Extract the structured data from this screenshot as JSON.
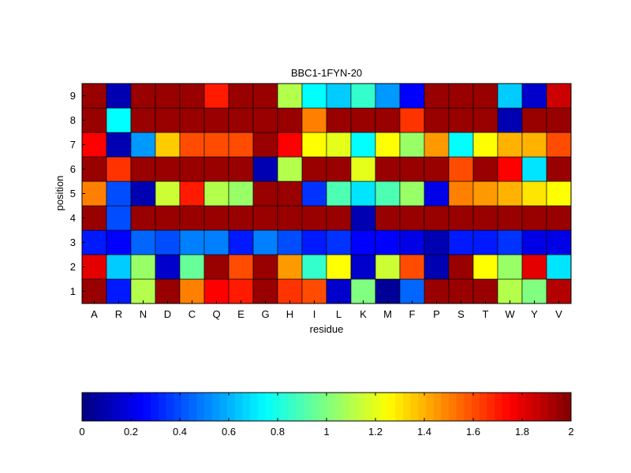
{
  "chart_data": {
    "type": "heatmap",
    "title": "BBC1-1FYN-20",
    "xlabel": "residue",
    "ylabel": "position",
    "x_categories": [
      "A",
      "R",
      "N",
      "D",
      "C",
      "Q",
      "E",
      "G",
      "H",
      "I",
      "L",
      "K",
      "M",
      "F",
      "P",
      "S",
      "T",
      "W",
      "Y",
      "V"
    ],
    "y_categories": [
      "1",
      "2",
      "3",
      "4",
      "5",
      "6",
      "7",
      "8",
      "9"
    ],
    "colormap": "jet",
    "zlim": [
      0,
      2
    ],
    "values": [
      [
        1.95,
        0.3,
        1.1,
        1.95,
        1.5,
        1.75,
        1.7,
        1.95,
        1.65,
        1.6,
        0.15,
        1.0,
        0.05,
        0.45,
        1.95,
        1.95,
        1.95,
        1.1,
        1.0,
        1.9
      ],
      [
        1.8,
        0.65,
        1.05,
        0.15,
        0.95,
        1.95,
        1.6,
        1.95,
        1.45,
        0.85,
        1.25,
        0.15,
        1.15,
        1.6,
        0.1,
        1.95,
        1.25,
        1.05,
        1.8,
        0.7
      ],
      [
        0.3,
        0.25,
        0.45,
        0.4,
        0.5,
        0.5,
        0.3,
        0.5,
        0.4,
        0.3,
        0.35,
        0.25,
        0.25,
        0.2,
        0.1,
        0.3,
        0.3,
        0.35,
        0.2,
        0.2
      ],
      [
        1.95,
        0.4,
        1.95,
        1.95,
        1.95,
        1.95,
        1.95,
        1.95,
        1.95,
        1.95,
        1.95,
        0.1,
        1.95,
        1.95,
        1.95,
        1.95,
        1.95,
        1.95,
        1.95,
        1.95
      ],
      [
        1.5,
        0.4,
        0.1,
        1.15,
        1.7,
        1.1,
        1.05,
        1.95,
        1.95,
        0.35,
        0.9,
        0.7,
        0.9,
        1.05,
        0.2,
        1.5,
        1.45,
        1.4,
        1.3,
        1.25
      ],
      [
        1.95,
        1.65,
        1.95,
        1.95,
        1.95,
        1.95,
        1.95,
        0.1,
        1.1,
        1.95,
        1.95,
        1.2,
        1.95,
        1.95,
        1.95,
        1.6,
        1.95,
        1.75,
        0.7,
        1.95
      ],
      [
        1.75,
        0.1,
        0.55,
        1.35,
        1.6,
        1.6,
        1.6,
        1.95,
        1.75,
        1.25,
        1.2,
        0.75,
        1.25,
        1.05,
        1.45,
        0.75,
        1.25,
        1.4,
        1.4,
        1.6
      ],
      [
        1.95,
        0.75,
        1.95,
        1.95,
        1.95,
        1.95,
        1.95,
        1.95,
        1.95,
        1.5,
        1.95,
        1.95,
        1.95,
        1.65,
        1.95,
        1.95,
        1.95,
        0.1,
        1.95,
        1.95
      ],
      [
        1.95,
        0.1,
        1.95,
        1.95,
        1.95,
        1.7,
        1.95,
        1.95,
        1.1,
        0.75,
        0.65,
        0.85,
        0.55,
        0.25,
        1.95,
        1.95,
        1.95,
        0.65,
        0.15,
        1.85
      ]
    ],
    "colorbar": {
      "ticks": [
        "0",
        "0.2",
        "0.4",
        "0.6",
        "0.8",
        "1",
        "1.2",
        "1.4",
        "1.6",
        "1.8",
        "2"
      ],
      "levels": 64
    },
    "grid": true,
    "legend": "colorbar-bottom"
  }
}
